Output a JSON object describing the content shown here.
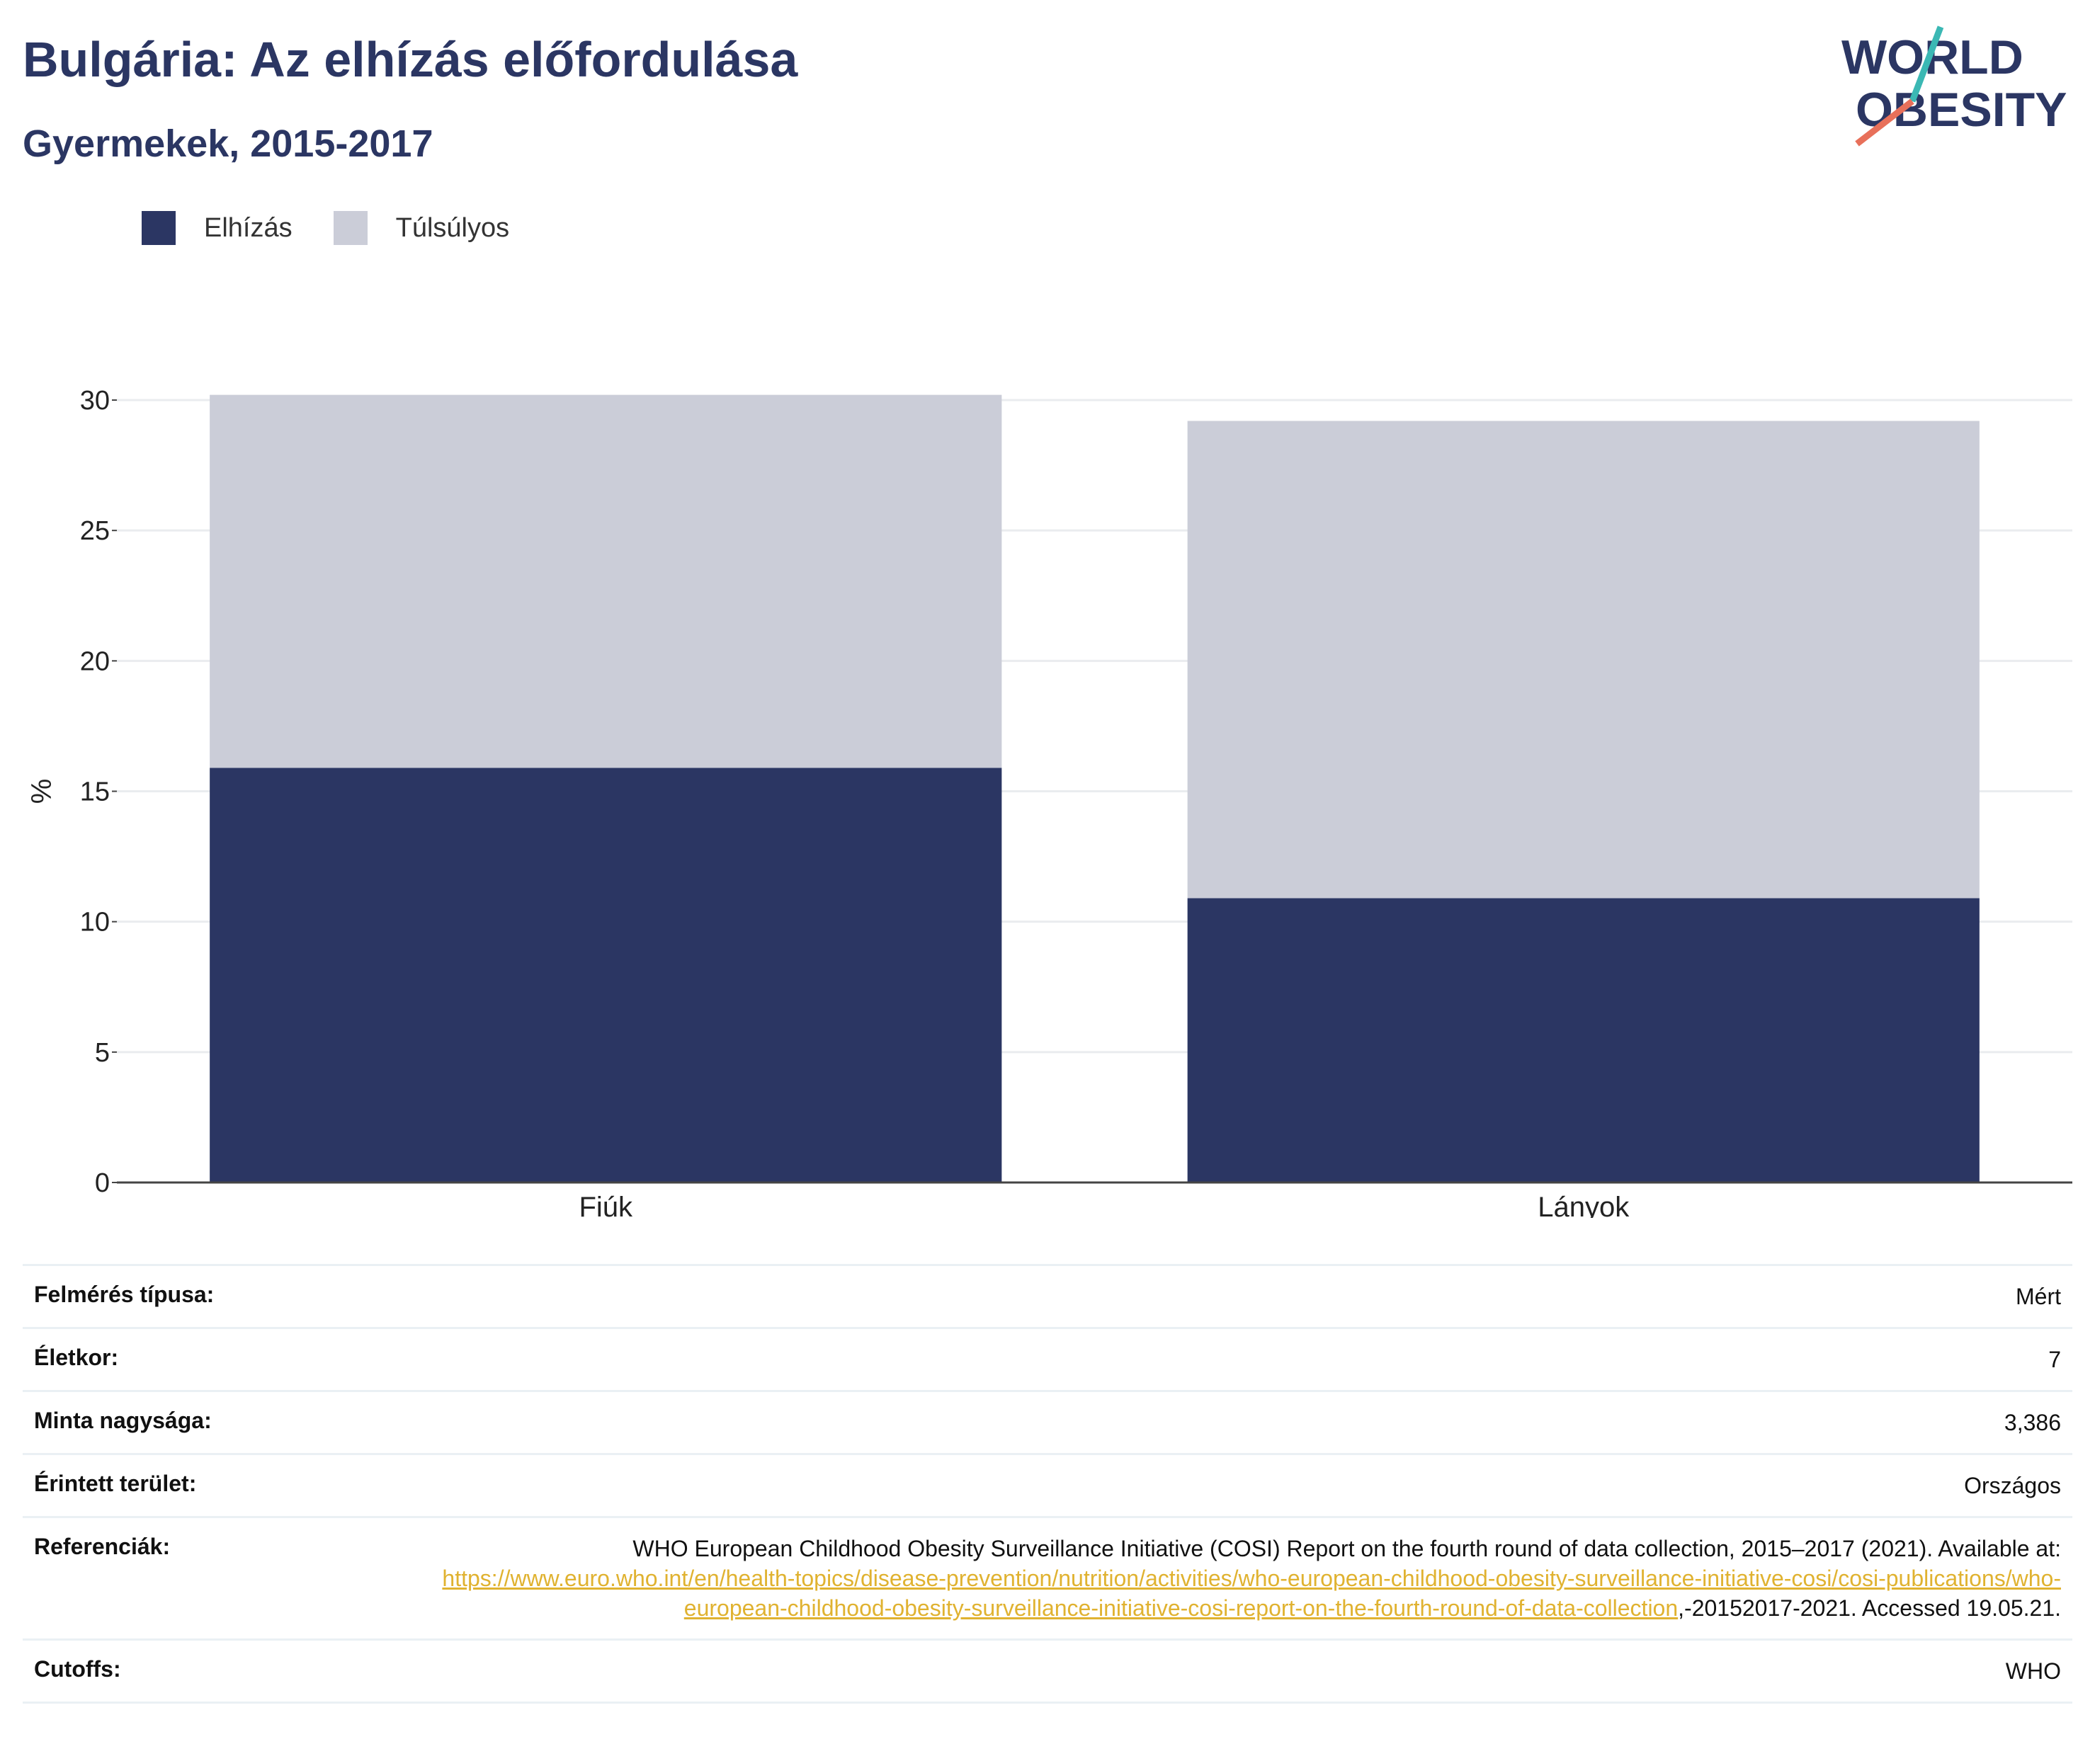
{
  "header": {
    "title": "Bulgária: Az elhízás előfordulása",
    "subtitle": "Gyermekek, 2015-2017"
  },
  "logo": {
    "line1": "WORLD",
    "line2": "OBESITY"
  },
  "colors": {
    "obesity": "#2b3663",
    "overweight": "#cbcdd8",
    "accent_teal": "#3bb8b4",
    "accent_red": "#e8705a",
    "link": "#e0b230"
  },
  "legend": [
    {
      "label": "Elhízás",
      "color": "#2b3663"
    },
    {
      "label": "Túlsúlyos",
      "color": "#cbcdd8"
    }
  ],
  "chart_data": {
    "type": "bar",
    "stacked": true,
    "categories": [
      "Fiúk",
      "Lányok"
    ],
    "series": [
      {
        "name": "Elhízás",
        "values": [
          15.9,
          10.9
        ]
      },
      {
        "name": "Túlsúlyos",
        "values": [
          14.3,
          18.3
        ]
      }
    ],
    "ylabel": "%",
    "ylim": [
      0,
      30
    ],
    "yticks": [
      0,
      5,
      10,
      15,
      20,
      25,
      30
    ],
    "grid": true
  },
  "info": {
    "survey_type": {
      "label": "Felmérés típusa:",
      "value": "Mért"
    },
    "age": {
      "label": "Életkor:",
      "value": "7"
    },
    "sample_size": {
      "label": "Minta nagysága:",
      "value": "3,386"
    },
    "area": {
      "label": "Érintett terület:",
      "value": "Országos"
    },
    "references": {
      "label": "Referenciák:",
      "text_before": "WHO European Childhood Obesity Surveillance Initiative (COSI) Report on the fourth round of data collection, 2015–2017 (2021). Available at: ",
      "link": "https://www.euro.who.int/en/health-topics/disease-prevention/nutrition/activities/who-european-childhood-obesity-surveillance-initiative-cosi/cosi-publications/who-european-childhood-obesity-surveillance-initiative-cosi-report-on-the-fourth-round-of-data-collection",
      "text_after": ",-20152017-2021. Accessed 19.05.21."
    },
    "cutoffs": {
      "label": "Cutoffs:",
      "value": "WHO"
    }
  }
}
